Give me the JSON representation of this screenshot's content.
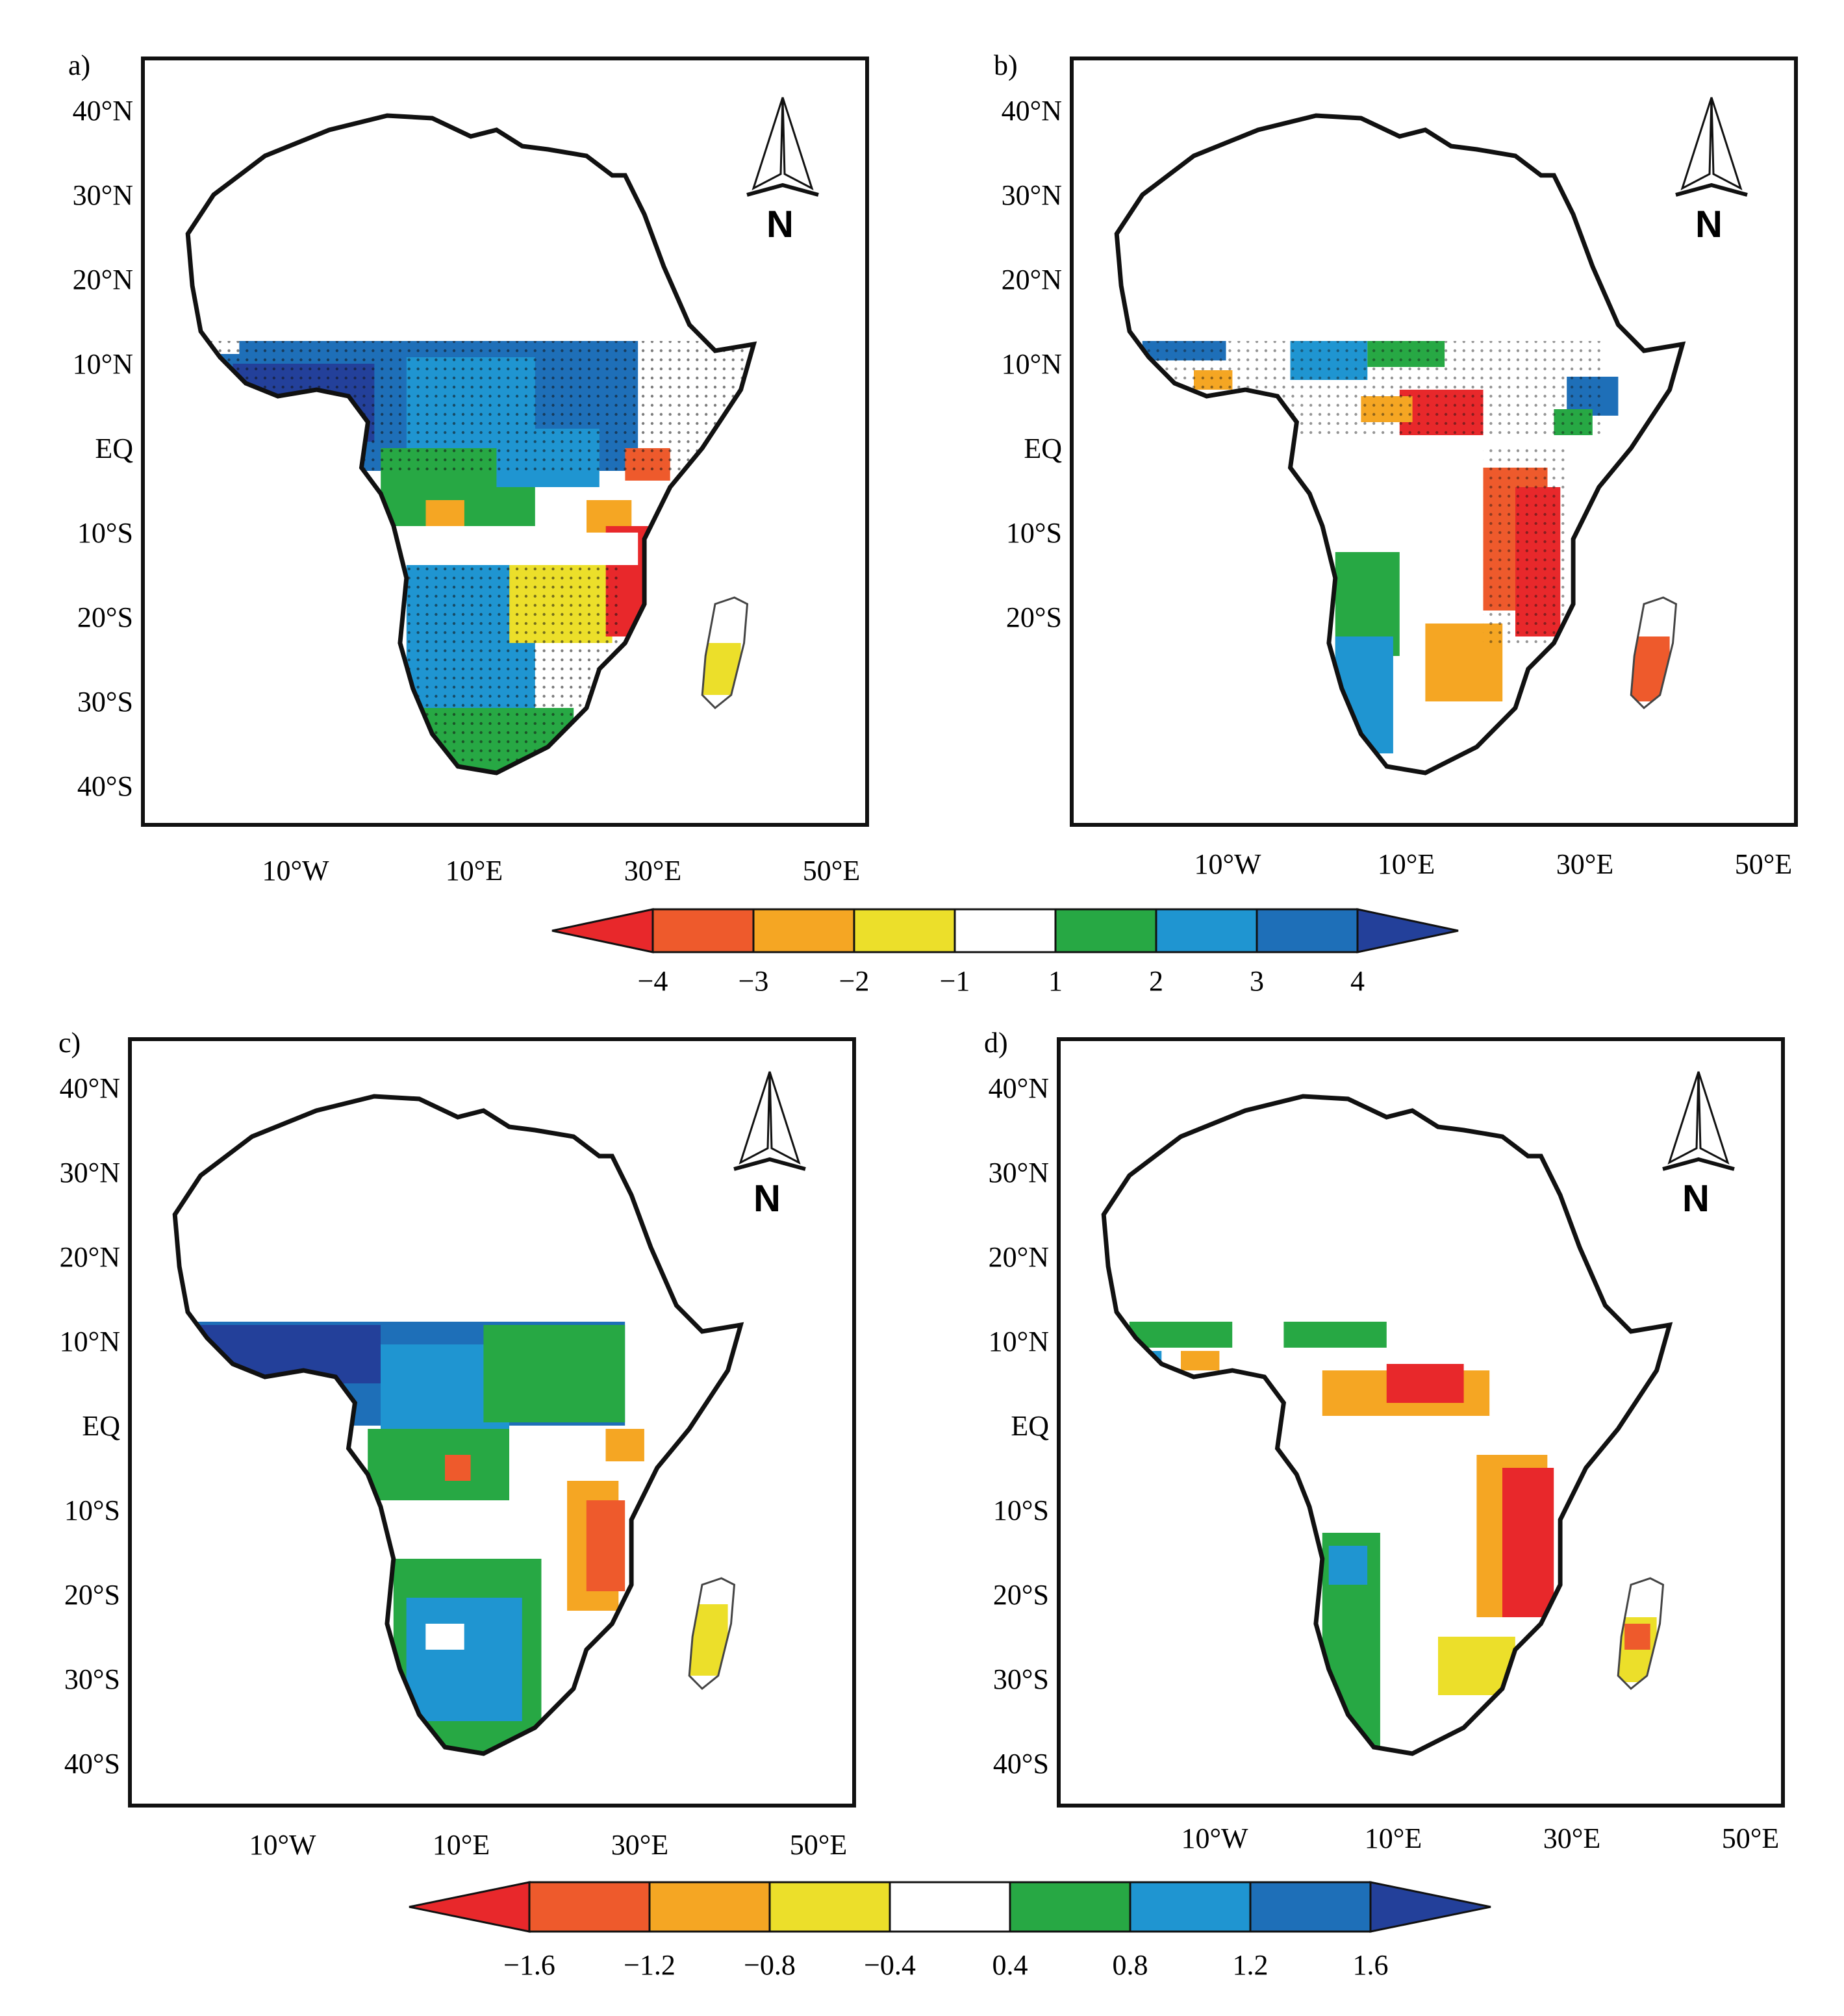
{
  "figure": {
    "palette": {
      "neg4": "#e8282b",
      "neg3": "#ee5a2c",
      "neg2": "#f5a623",
      "neg1": "#ecdf2a",
      "zero": "#ffffff",
      "pos1": "#27a844",
      "pos2": "#1f95d1",
      "pos3": "#1e6fb8",
      "pos4": "#23409a",
      "coast": "#111111"
    },
    "north_arrow_label": "N",
    "panels": [
      {
        "id": "a",
        "label": "a)",
        "lat_labels": [
          "40°N",
          "30°N",
          "20°N",
          "10°N",
          "EQ",
          "10°S",
          "20°S",
          "30°S",
          "40°S"
        ],
        "lon_labels": [
          "10°W",
          "10°E",
          "30°E",
          "50°E"
        ]
      },
      {
        "id": "b",
        "label": "b)",
        "lat_labels": [
          "40°N",
          "30°N",
          "20°N",
          "10°N",
          "EQ",
          "10°S",
          "20°S"
        ],
        "lon_labels": [
          "10°W",
          "10°E",
          "30°E",
          "50°E"
        ]
      },
      {
        "id": "c",
        "label": "c)",
        "lat_labels": [
          "40°N",
          "30°N",
          "20°N",
          "10°N",
          "EQ",
          "10°S",
          "20°S",
          "30°S",
          "40°S"
        ],
        "lon_labels": [
          "10°W",
          "10°E",
          "30°E",
          "50°E"
        ]
      },
      {
        "id": "d",
        "label": "d)",
        "lat_labels": [
          "40°N",
          "30°N",
          "20°N",
          "10°N",
          "EQ",
          "10°S",
          "20°S",
          "30°S",
          "40°S"
        ],
        "lon_labels": [
          "10°W",
          "10°E",
          "30°E",
          "50°E"
        ]
      }
    ],
    "colorbars": [
      {
        "id": "top",
        "labels": [
          "−4",
          "−3",
          "−2",
          "−1",
          "1",
          "2",
          "3",
          "4"
        ]
      },
      {
        "id": "bottom",
        "labels": [
          "−1.6",
          "−1.2",
          "−0.8",
          "−0.4",
          "0.4",
          "0.8",
          "1.2",
          "1.6"
        ]
      }
    ]
  }
}
